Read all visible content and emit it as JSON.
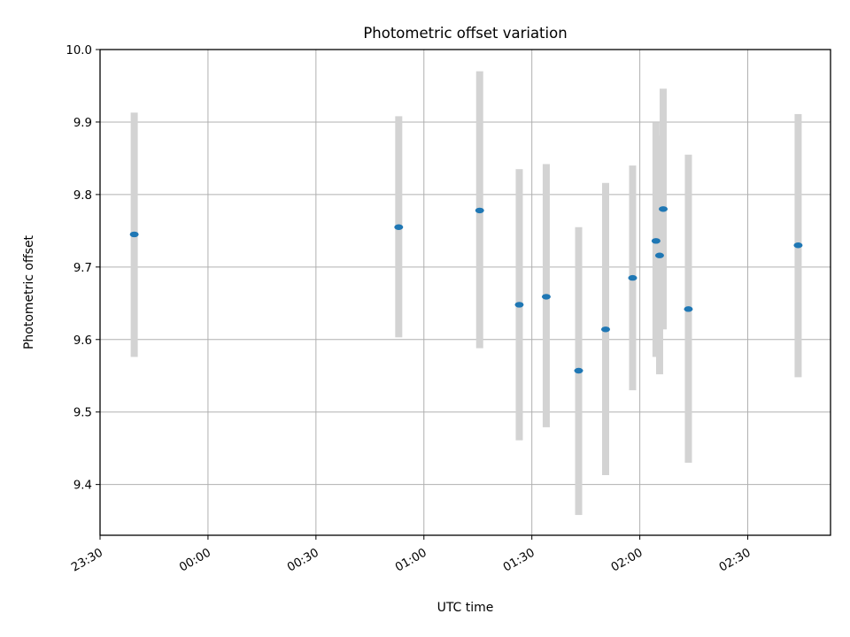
{
  "chart_data": {
    "type": "scatter",
    "title": "Photometric offset variation",
    "xlabel": "UTC time",
    "ylabel": "Photometric offset",
    "x_axis": "time",
    "xlim": [
      "23:30",
      "02:53"
    ],
    "ylim": [
      9.33,
      10.0
    ],
    "x_tick_labels": [
      "23:30",
      "00:00",
      "00:30",
      "01:00",
      "01:30",
      "02:00",
      "02:30"
    ],
    "y_tick_labels": [
      "9.4",
      "9.5",
      "9.6",
      "9.7",
      "9.8",
      "9.9",
      "10.0"
    ],
    "grid": true,
    "errorbar_color": "#d3d3d3",
    "point_color": "#1f77b4",
    "points": [
      {
        "x": "23:39.5",
        "y": 9.745,
        "ylow": 9.576,
        "yhigh": 9.913
      },
      {
        "x": "00:53",
        "y": 9.755,
        "ylow": 9.603,
        "yhigh": 9.908
      },
      {
        "x": "01:15.5",
        "y": 9.778,
        "ylow": 9.588,
        "yhigh": 9.97
      },
      {
        "x": "01:26.5",
        "y": 9.648,
        "ylow": 9.461,
        "yhigh": 9.835
      },
      {
        "x": "01:34",
        "y": 9.659,
        "ylow": 9.479,
        "yhigh": 9.842
      },
      {
        "x": "01:43",
        "y": 9.557,
        "ylow": 9.358,
        "yhigh": 9.755
      },
      {
        "x": "01:50.5",
        "y": 9.614,
        "ylow": 9.413,
        "yhigh": 9.816
      },
      {
        "x": "01:58",
        "y": 9.685,
        "ylow": 9.53,
        "yhigh": 9.84
      },
      {
        "x": "02:04.5",
        "y": 9.736,
        "ylow": 9.576,
        "yhigh": 9.899
      },
      {
        "x": "02:05.5",
        "y": 9.716,
        "ylow": 9.552,
        "yhigh": 9.881
      },
      {
        "x": "02:06.5",
        "y": 9.78,
        "ylow": 9.614,
        "yhigh": 9.946
      },
      {
        "x": "02:13.5",
        "y": 9.642,
        "ylow": 9.43,
        "yhigh": 9.855
      },
      {
        "x": "02:44",
        "y": 9.73,
        "ylow": 9.548,
        "yhigh": 9.911
      }
    ]
  }
}
